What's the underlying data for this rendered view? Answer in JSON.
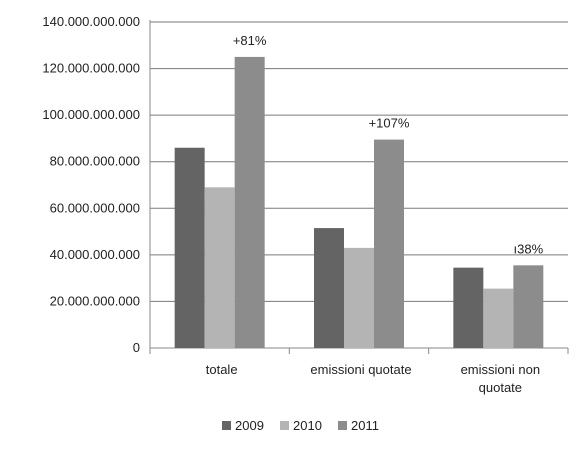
{
  "chart_data": {
    "type": "bar",
    "categories": [
      "totale",
      "emissioni  quotate",
      "emissioni non quotate"
    ],
    "series": [
      {
        "name": "2009",
        "values": [
          86000000000,
          51500000000,
          34500000000
        ],
        "color": "#646464"
      },
      {
        "name": "2010",
        "values": [
          69000000000,
          43000000000,
          25500000000
        ],
        "color": "#b4b4b4"
      },
      {
        "name": "2011",
        "values": [
          125000000000,
          89500000000,
          35500000000
        ],
        "color": "#8c8c8c"
      }
    ],
    "annotations": [
      "+81%",
      "+107%",
      "ı38%"
    ],
    "ylim": [
      0,
      140000000000
    ],
    "yticks": [
      0,
      20000000000,
      40000000000,
      60000000000,
      80000000000,
      100000000000,
      120000000000,
      140000000000
    ],
    "ytick_labels": [
      "0",
      "20.000.000.000",
      "40.000.000.000",
      "60.000.000.000",
      "80.000.000.000",
      "100.000.000.000",
      "120.000.000.000",
      "140.000.000.000"
    ],
    "grid": true,
    "legend_position": "bottom"
  }
}
